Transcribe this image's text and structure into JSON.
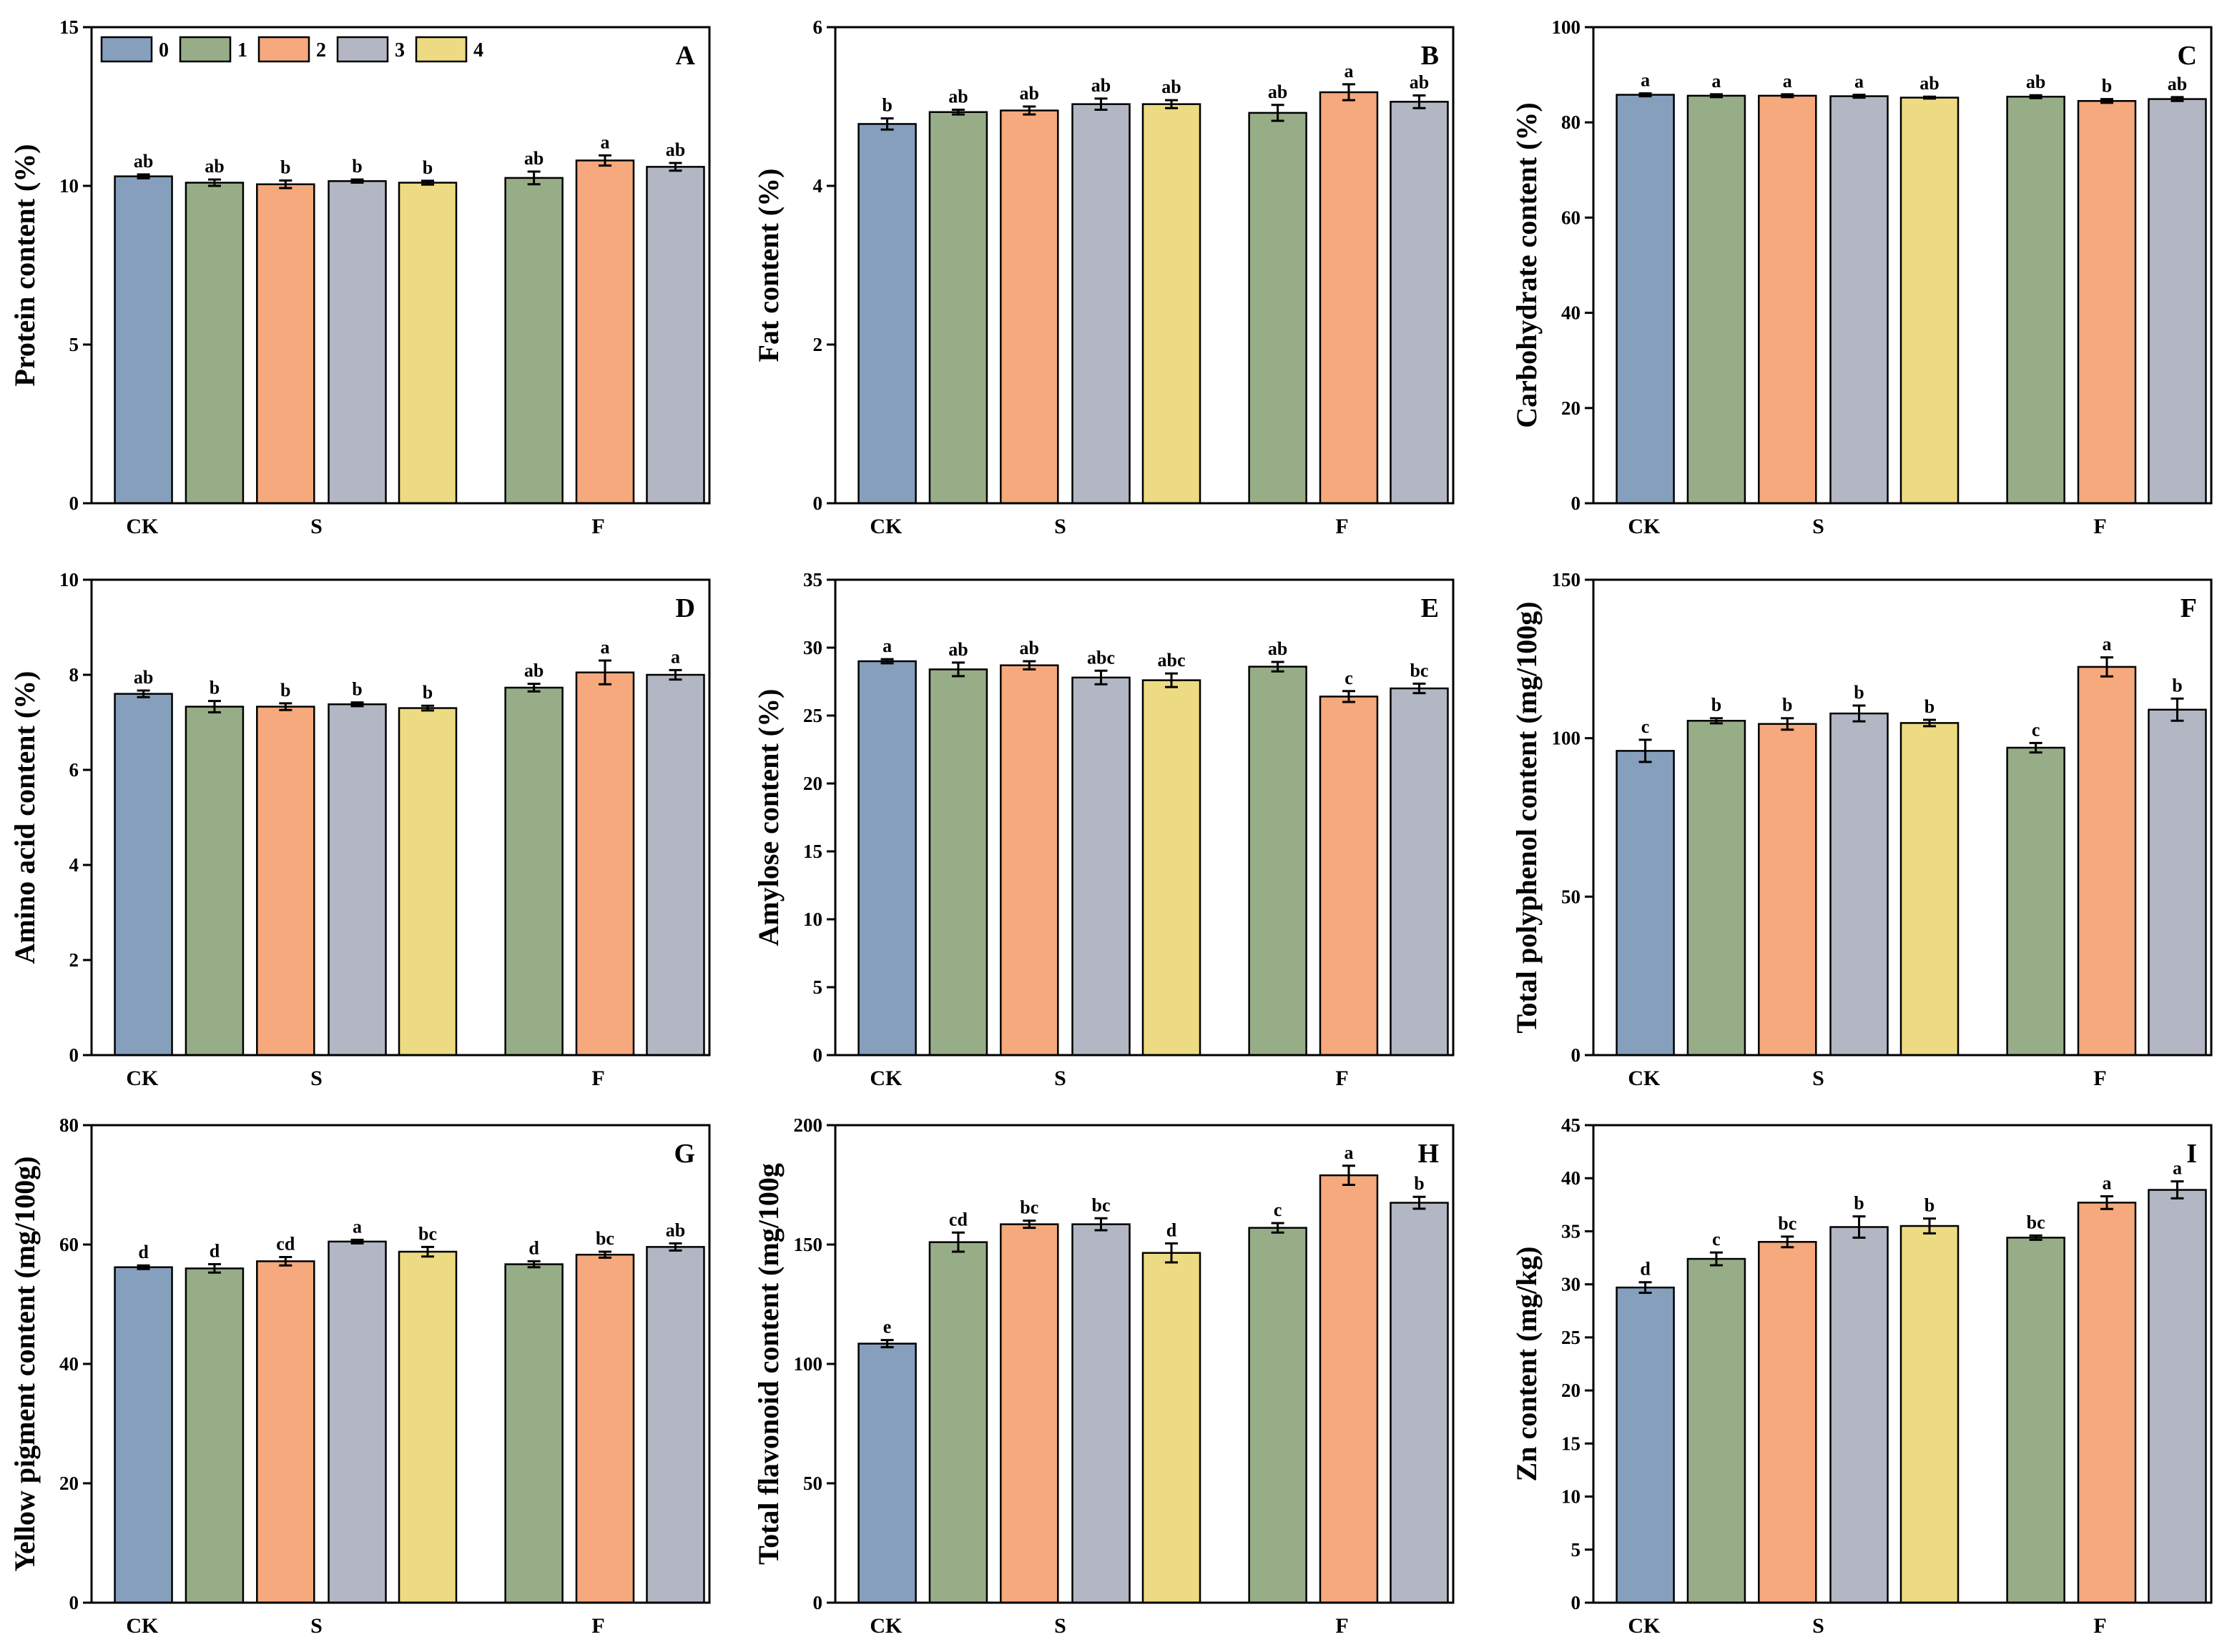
{
  "colors": {
    "0": "#859fbd",
    "1": "#97ad87",
    "2": "#f5a97c",
    "3": "#b3b7c3",
    "4": "#ecdb82"
  },
  "legend": [
    "0",
    "1",
    "2",
    "3",
    "4"
  ],
  "bar_levels": [
    "0",
    "1",
    "2",
    "3",
    "4",
    "1",
    "2",
    "3"
  ],
  "groups": [
    {
      "label": "CK",
      "bars": [
        0
      ]
    },
    {
      "label": "S",
      "bars": [
        1,
        2,
        3,
        4
      ]
    },
    {
      "label": "F",
      "bars": [
        5,
        6,
        7
      ]
    }
  ],
  "chart_data": [
    {
      "type": "bar",
      "letter": "A",
      "ylabel": "Protein content (%)",
      "ylim": [
        0,
        15
      ],
      "yticks": [
        0,
        5,
        10,
        15
      ],
      "values": [
        10.3,
        10.1,
        10.05,
        10.15,
        10.1,
        10.25,
        10.8,
        10.6
      ],
      "errors": [
        0.06,
        0.1,
        0.12,
        0.05,
        0.06,
        0.2,
        0.16,
        0.12
      ],
      "sig": [
        "ab",
        "ab",
        "b",
        "b",
        "b",
        "ab",
        "a",
        "ab"
      ]
    },
    {
      "type": "bar",
      "letter": "B",
      "ylabel": "Fat content (%)",
      "ylim": [
        0,
        6
      ],
      "yticks": [
        0,
        2,
        4,
        6
      ],
      "values": [
        4.78,
        4.93,
        4.95,
        5.03,
        5.03,
        4.92,
        5.18,
        5.06
      ],
      "errors": [
        0.07,
        0.03,
        0.05,
        0.07,
        0.05,
        0.1,
        0.1,
        0.08
      ],
      "sig": [
        "b",
        "ab",
        "ab",
        "ab",
        "ab",
        "ab",
        "a",
        "ab"
      ]
    },
    {
      "type": "bar",
      "letter": "C",
      "ylabel": "Carbohydrate content (%)",
      "ylim": [
        0,
        100
      ],
      "yticks": [
        0,
        20,
        40,
        60,
        80,
        100
      ],
      "values": [
        85.8,
        85.6,
        85.6,
        85.5,
        85.2,
        85.4,
        84.5,
        84.9
      ],
      "errors": [
        0.3,
        0.3,
        0.3,
        0.3,
        0.2,
        0.3,
        0.4,
        0.4
      ],
      "sig": [
        "a",
        "a",
        "a",
        "a",
        "ab",
        "ab",
        "b",
        "ab"
      ]
    },
    {
      "type": "bar",
      "letter": "D",
      "ylabel": "Amino acid content (%)",
      "ylim": [
        0,
        10
      ],
      "yticks": [
        0,
        2,
        4,
        6,
        8,
        10
      ],
      "values": [
        7.6,
        7.33,
        7.33,
        7.38,
        7.3,
        7.73,
        8.05,
        8.0
      ],
      "errors": [
        0.07,
        0.12,
        0.07,
        0.04,
        0.05,
        0.08,
        0.25,
        0.1
      ],
      "sig": [
        "ab",
        "b",
        "b",
        "b",
        "b",
        "ab",
        "a",
        "a"
      ]
    },
    {
      "type": "bar",
      "letter": "E",
      "ylabel": "Amylose content (%)",
      "ylim": [
        0,
        35
      ],
      "yticks": [
        0,
        5,
        10,
        15,
        20,
        25,
        30,
        35
      ],
      "values": [
        29.0,
        28.4,
        28.7,
        27.8,
        27.6,
        28.6,
        26.4,
        27.0
      ],
      "errors": [
        0.15,
        0.5,
        0.3,
        0.5,
        0.5,
        0.35,
        0.4,
        0.35
      ],
      "sig": [
        "a",
        "ab",
        "ab",
        "abc",
        "abc",
        "ab",
        "c",
        "bc"
      ]
    },
    {
      "type": "bar",
      "letter": "F",
      "ylabel": "Total polyphenol content (mg/100g)",
      "ylim": [
        0,
        150
      ],
      "yticks": [
        0,
        50,
        100,
        150
      ],
      "values": [
        96.0,
        105.5,
        104.5,
        107.8,
        104.8,
        97.0,
        122.5,
        109.0
      ],
      "errors": [
        3.5,
        0.8,
        1.8,
        2.5,
        1.0,
        1.5,
        3.0,
        3.5
      ],
      "sig": [
        "c",
        "b",
        "b",
        "b",
        "b",
        "c",
        "a",
        "b"
      ]
    },
    {
      "type": "bar",
      "letter": "G",
      "ylabel": "Yellow pigment content (mg/100g)",
      "ylim": [
        0,
        80
      ],
      "yticks": [
        0,
        20,
        40,
        60,
        80
      ],
      "values": [
        56.2,
        56.0,
        57.2,
        60.5,
        58.8,
        56.7,
        58.3,
        59.6
      ],
      "errors": [
        0.3,
        0.7,
        0.7,
        0.3,
        0.8,
        0.5,
        0.5,
        0.6
      ],
      "sig": [
        "d",
        "d",
        "cd",
        "a",
        "bc",
        "d",
        "bc",
        "ab"
      ]
    },
    {
      "type": "bar",
      "letter": "H",
      "ylabel": "Total flavonoid content (mg/100g",
      "ylim": [
        0,
        200
      ],
      "yticks": [
        0,
        50,
        100,
        150,
        200
      ],
      "values": [
        108.5,
        151.0,
        158.5,
        158.5,
        146.5,
        157.0,
        179.0,
        167.5
      ],
      "errors": [
        1.5,
        4.0,
        1.5,
        2.5,
        4.0,
        2.0,
        4.0,
        2.5
      ],
      "sig": [
        "e",
        "cd",
        "bc",
        "bc",
        "d",
        "c",
        "a",
        "b"
      ]
    },
    {
      "type": "bar",
      "letter": "I",
      "ylabel": "Zn content (mg/kg)",
      "ylim": [
        0,
        45
      ],
      "yticks": [
        0,
        5,
        10,
        15,
        20,
        25,
        30,
        35,
        40,
        45
      ],
      "values": [
        29.7,
        32.4,
        34.0,
        35.4,
        35.5,
        34.4,
        37.7,
        38.9
      ],
      "errors": [
        0.5,
        0.6,
        0.5,
        1.0,
        0.7,
        0.2,
        0.6,
        0.8
      ],
      "sig": [
        "d",
        "c",
        "bc",
        "b",
        "b",
        "bc",
        "a",
        "a"
      ]
    }
  ]
}
